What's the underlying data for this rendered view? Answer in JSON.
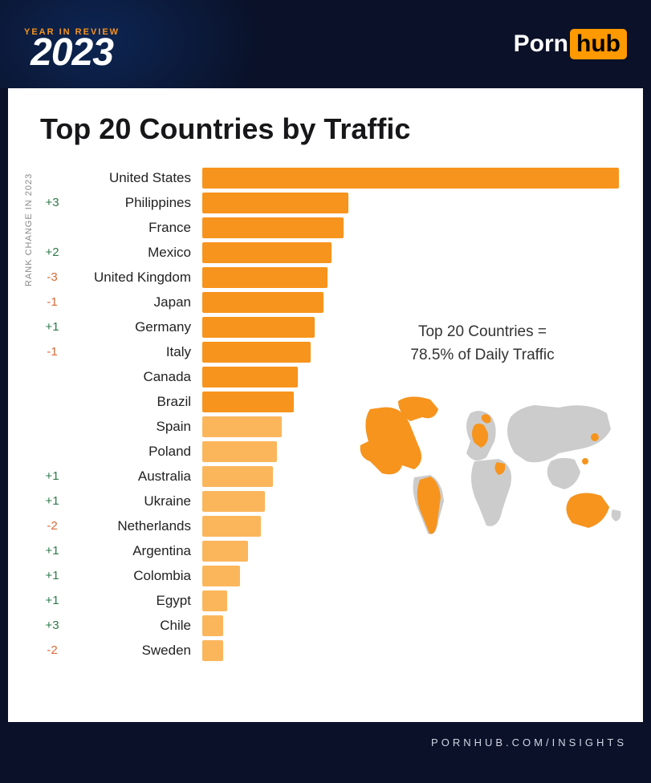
{
  "header": {
    "year_review_text": "YEAR IN REVIEW",
    "year": "2023",
    "brand_left": "Porn",
    "brand_right": "hub"
  },
  "chart": {
    "type": "bar",
    "title": "Top 20 Countries by Traffic",
    "yaxis_label": "RANK CHANGE IN 2023",
    "bar_color_dark": "#f7941d",
    "bar_color_light": "#fbb65c",
    "max_value": 100,
    "rows": [
      {
        "rank_change": "",
        "country": "United States",
        "value": 100,
        "shade": "dark"
      },
      {
        "rank_change": "+3",
        "country": "Philippines",
        "value": 35,
        "shade": "dark"
      },
      {
        "rank_change": "",
        "country": "France",
        "value": 34,
        "shade": "dark"
      },
      {
        "rank_change": "+2",
        "country": "Mexico",
        "value": 31,
        "shade": "dark"
      },
      {
        "rank_change": "-3",
        "country": "United Kingdom",
        "value": 30,
        "shade": "dark"
      },
      {
        "rank_change": "-1",
        "country": "Japan",
        "value": 29,
        "shade": "dark"
      },
      {
        "rank_change": "+1",
        "country": "Germany",
        "value": 27,
        "shade": "dark"
      },
      {
        "rank_change": "-1",
        "country": "Italy",
        "value": 26,
        "shade": "dark"
      },
      {
        "rank_change": "",
        "country": "Canada",
        "value": 23,
        "shade": "dark"
      },
      {
        "rank_change": "",
        "country": "Brazil",
        "value": 22,
        "shade": "dark"
      },
      {
        "rank_change": "",
        "country": "Spain",
        "value": 19,
        "shade": "light"
      },
      {
        "rank_change": "",
        "country": "Poland",
        "value": 18,
        "shade": "light"
      },
      {
        "rank_change": "+1",
        "country": "Australia",
        "value": 17,
        "shade": "light"
      },
      {
        "rank_change": "+1",
        "country": "Ukraine",
        "value": 15,
        "shade": "light"
      },
      {
        "rank_change": "-2",
        "country": "Netherlands",
        "value": 14,
        "shade": "light"
      },
      {
        "rank_change": "+1",
        "country": "Argentina",
        "value": 11,
        "shade": "light"
      },
      {
        "rank_change": "+1",
        "country": "Colombia",
        "value": 9,
        "shade": "light"
      },
      {
        "rank_change": "+1",
        "country": "Egypt",
        "value": 6,
        "shade": "light"
      },
      {
        "rank_change": "+3",
        "country": "Chile",
        "value": 5,
        "shade": "light"
      },
      {
        "rank_change": "-2",
        "country": "Sweden",
        "value": 5,
        "shade": "light"
      }
    ],
    "callout_line1": "Top 20 Countries =",
    "callout_line2": "78.5% of Daily Traffic",
    "map_highlight_color": "#f7941d",
    "map_base_color": "#cccccc"
  },
  "footer": {
    "url": "PORNHUB.COM/INSIGHTS"
  },
  "colors": {
    "rank_positive": "#2d7a4a",
    "rank_negative": "#d96b3a",
    "header_bg": "#0a1128",
    "card_bg": "#ffffff",
    "title_color": "#17171a",
    "brand_box": "#ff9900"
  }
}
